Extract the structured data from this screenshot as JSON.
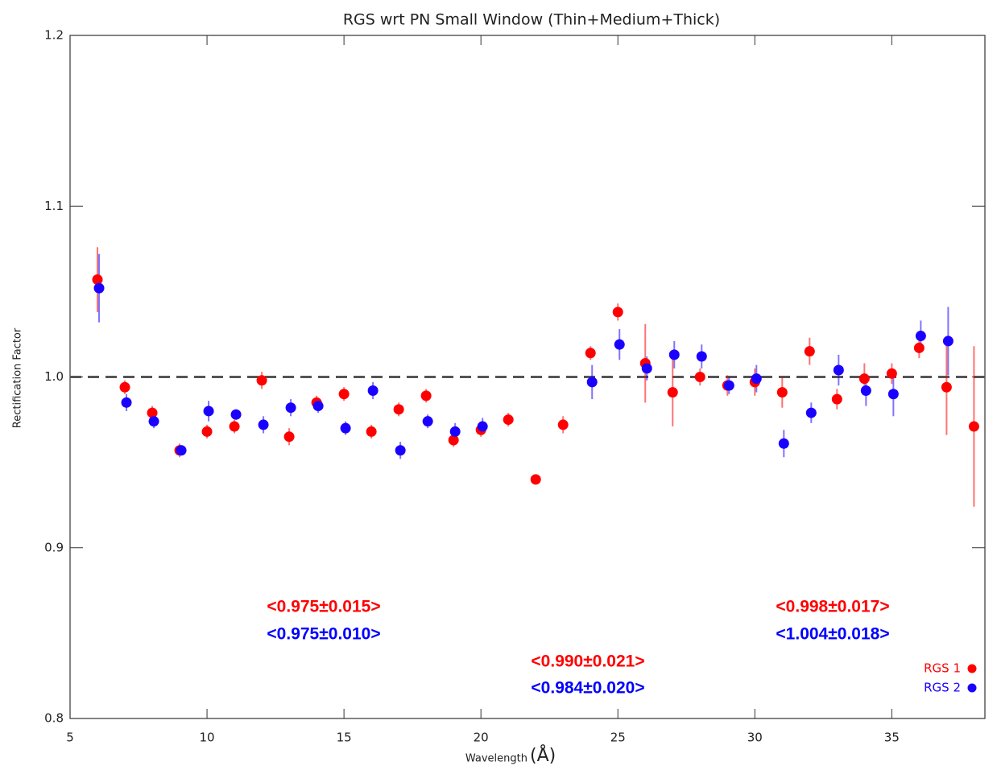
{
  "chart_data": {
    "type": "scatter",
    "title": "RGS wrt PN Small Window (Thin+Medium+Thick)",
    "xlabel": "Wavelength",
    "xlabel_unit": "(Å)",
    "ylabel": "Rectification Factor",
    "xlim": [
      5,
      38.4
    ],
    "ylim": [
      0.8,
      1.2
    ],
    "xticks": [
      5,
      10,
      15,
      20,
      25,
      30,
      35
    ],
    "yticks": [
      0.8,
      0.9,
      {
        "value": 1,
        "label": "1.0"
      },
      1.1,
      1.2
    ],
    "reference_line": 1,
    "legend": "bottom-right",
    "series": [
      {
        "name": "RGS 1",
        "color": "#ff0000",
        "x": [
          6,
          7,
          8,
          9,
          10,
          11,
          12,
          13,
          14,
          15,
          16,
          17,
          18,
          19,
          20,
          21,
          22,
          23,
          24,
          25,
          26,
          27,
          28,
          29,
          30,
          31,
          32,
          33,
          34,
          35,
          36,
          37,
          38
        ],
        "values": [
          1.057,
          0.994,
          0.979,
          0.957,
          0.968,
          0.971,
          0.998,
          0.965,
          0.985,
          0.99,
          0.968,
          0.981,
          0.989,
          0.963,
          0.969,
          0.975,
          0.94,
          0.972,
          1.014,
          1.038,
          1.008,
          0.991,
          1.0,
          0.995,
          0.997,
          0.991,
          1.015,
          0.987,
          0.999,
          1.002,
          1.017,
          0.994,
          0.971
        ],
        "errors": [
          0.019,
          0.004,
          0.004,
          0.004,
          0.004,
          0.004,
          0.005,
          0.005,
          0.004,
          0.004,
          0.004,
          0.004,
          0.004,
          0.004,
          0.004,
          0.004,
          0.003,
          0.005,
          0.004,
          0.005,
          0.023,
          0.02,
          0.005,
          0.006,
          0.008,
          0.009,
          0.008,
          0.006,
          0.009,
          0.006,
          0.006,
          0.028,
          0.047
        ]
      },
      {
        "name": "RGS 2",
        "color": "#1a00ff",
        "x": [
          6,
          7,
          8,
          9,
          10,
          11,
          12,
          13,
          14,
          15,
          16,
          17,
          18,
          19,
          20,
          21,
          22,
          23,
          24,
          25,
          26,
          27,
          28,
          29,
          30,
          31,
          32,
          33,
          34,
          35,
          36,
          37,
          38
        ],
        "values": [
          1.052,
          0.985,
          0.974,
          0.957,
          0.98,
          0.978,
          0.972,
          0.982,
          0.983,
          0.97,
          0.992,
          0.957,
          0.974,
          0.968,
          0.971,
          null,
          null,
          null,
          0.997,
          1.019,
          1.005,
          1.013,
          1.012,
          0.995,
          0.999,
          0.961,
          0.979,
          1.004,
          0.992,
          0.99,
          1.024,
          1.021,
          null
        ],
        "errors": [
          0.02,
          0.005,
          0.004,
          0.003,
          0.006,
          0.003,
          0.005,
          0.005,
          0.004,
          0.004,
          0.005,
          0.005,
          0.004,
          0.005,
          0.005,
          null,
          null,
          null,
          0.01,
          0.009,
          0.007,
          0.008,
          0.007,
          0.005,
          0.008,
          0.008,
          0.006,
          0.009,
          0.009,
          0.013,
          0.009,
          0.02,
          null
        ]
      }
    ],
    "annotations": [
      {
        "text": "<0.975±0.015>",
        "color": "#ff0000"
      },
      {
        "text": "<0.975±0.010>",
        "color": "#0000ff"
      },
      {
        "text": "<0.990±0.021>",
        "color": "#ff0000"
      },
      {
        "text": "<0.984±0.020>",
        "color": "#0000ff"
      },
      {
        "text": "<0.998±0.017>",
        "color": "#ff0000"
      },
      {
        "text": "<1.004±0.018>",
        "color": "#0000ff"
      }
    ]
  }
}
